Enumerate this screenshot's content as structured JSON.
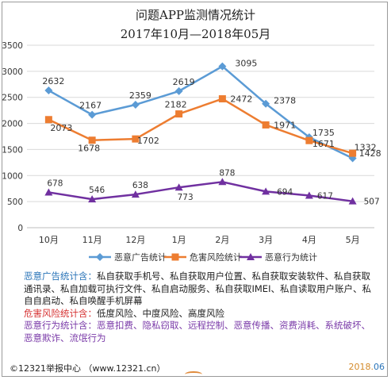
{
  "title": "问题APP监测情况统计",
  "subtitle": "2017年10月—2018年05月",
  "chart_data": {
    "type": "line",
    "categories": [
      "10月",
      "11月",
      "12月",
      "1月",
      "2月",
      "3月",
      "4月",
      "5月"
    ],
    "ylim": [
      0,
      3500
    ],
    "yticks": [
      "0",
      "500",
      "1000",
      "1500",
      "2000",
      "2500",
      "3000",
      "3500"
    ],
    "grid": true,
    "legend": "bottom",
    "series": [
      {
        "name": "恶意广告统计",
        "color": "#5b9bd5",
        "marker": "diamond",
        "values": [
          2632,
          2167,
          2359,
          2619,
          3095,
          2378,
          1735,
          1332
        ]
      },
      {
        "name": "危害风险统计",
        "color": "#ed7d31",
        "marker": "square",
        "values": [
          2073,
          1678,
          1702,
          2182,
          2472,
          1971,
          1671,
          1428
        ]
      },
      {
        "name": "恶意行为统计",
        "color": "#7030a0",
        "marker": "triangle",
        "values": [
          678,
          546,
          638,
          773,
          878,
          694,
          617,
          507
        ]
      }
    ]
  },
  "notes": {
    "ads_key": "恶意广告统计含：",
    "ads_text": "私自获取手机号、私自获取用户位置、私自获取安装软件、私自获取通讯录、私自加载可执行文件、私自启动服务、私自获取IMEI、私自读取用户账户、私自自启动、私自唤醒手机屏幕",
    "risk_key": "危害风险统计含：",
    "risk_text": "低度风险、中度风险、高度风险",
    "behavior_key": "恶意行为统计含：",
    "behavior_text": "恶意扣费、隐私窃取、远程控制、恶意传播、资费消耗、系统破坏、恶意欺诈、流氓行为"
  },
  "footer": {
    "source": "©12321举报中心 （www.12321.cn）",
    "date_year": "2018.",
    "date_month": "06"
  }
}
